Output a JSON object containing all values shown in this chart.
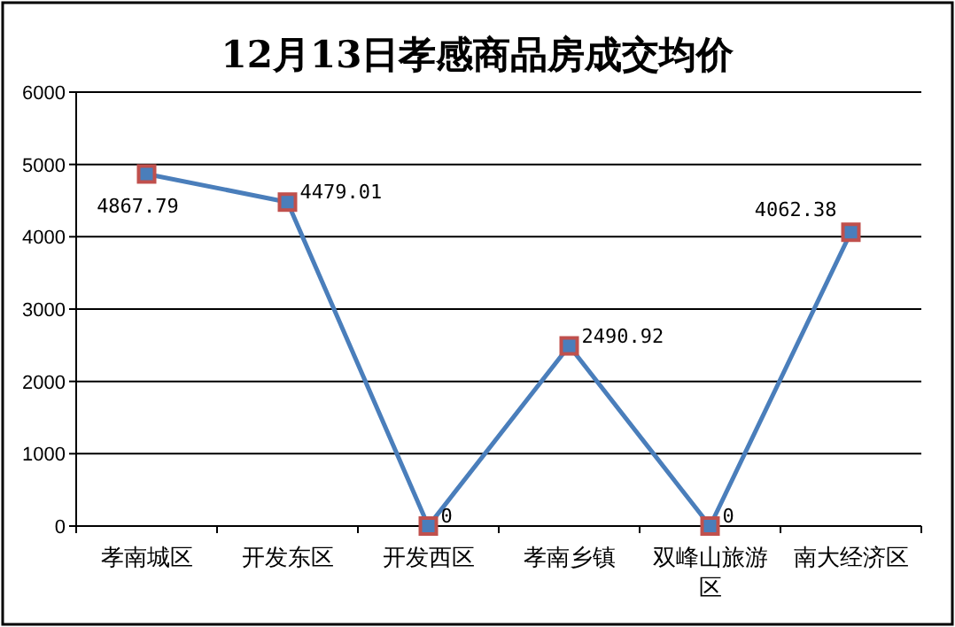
{
  "chart_data": {
    "type": "line",
    "title": "12月13日孝感商品房成交均价",
    "categories": [
      "孝南城区",
      "开发东区",
      "开发西区",
      "孝南乡镇",
      "双峰山旅游区",
      "南大经济区"
    ],
    "series": [
      {
        "color": "#4a7ebb",
        "values": [
          4867.79,
          4479.01,
          0,
          2490.92,
          0,
          4062.38
        ]
      }
    ],
    "ylim": [
      0,
      6000
    ],
    "yticks": [
      0,
      1000,
      2000,
      3000,
      4000,
      5000,
      6000
    ],
    "grid": "y",
    "marker": "square",
    "data_labels": true
  }
}
